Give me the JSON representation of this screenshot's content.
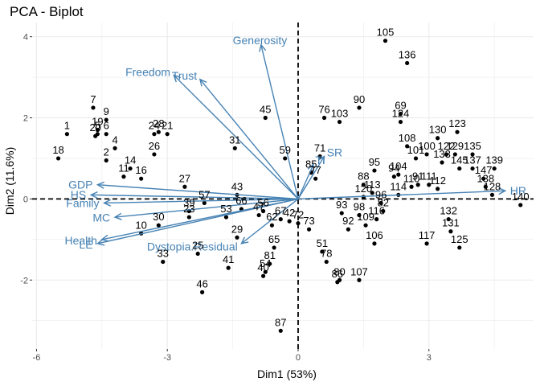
{
  "chart_data": {
    "type": "scatter",
    "title": "PCA - Biplot",
    "xlabel": "Dim1 (53%)",
    "ylabel": "Dim2 (11.6%)",
    "xlim": [
      -6.1,
      5.4
    ],
    "ylim": [
      -3.7,
      4.35
    ],
    "x_ticks": [
      -6,
      -3,
      0,
      3
    ],
    "y_ticks": [
      -2,
      0,
      2,
      4
    ],
    "x_ticklabels": [
      "-6",
      "-3",
      "0",
      "3"
    ],
    "y_ticklabels": [
      "-2",
      "0",
      "2",
      "4"
    ],
    "grid": true,
    "reference_lines": {
      "x": 0,
      "y": 0,
      "style": "dashed"
    },
    "colors": {
      "points": "#000000",
      "variables": "#4682b4",
      "grid": "#ebebeb"
    },
    "individuals": [
      {
        "label": "1",
        "x": -5.3,
        "y": 1.6
      },
      {
        "label": "2",
        "x": -4.4,
        "y": 0.95
      },
      {
        "label": "4",
        "x": -4.2,
        "y": 1.25
      },
      {
        "label": "5",
        "x": -4.6,
        "y": 1.6
      },
      {
        "label": "6",
        "x": -4.4,
        "y": 1.6
      },
      {
        "label": "7",
        "x": -4.7,
        "y": 2.25
      },
      {
        "label": "9",
        "x": -4.4,
        "y": 1.95
      },
      {
        "label": "10",
        "x": -3.6,
        "y": -0.85
      },
      {
        "label": "11",
        "x": -4.0,
        "y": 0.55
      },
      {
        "label": "14",
        "x": -3.85,
        "y": 0.75
      },
      {
        "label": "16",
        "x": -3.6,
        "y": 0.5
      },
      {
        "label": "18",
        "x": -5.5,
        "y": 1.0
      },
      {
        "label": "19",
        "x": -4.6,
        "y": 1.7
      },
      {
        "label": "20",
        "x": -4.65,
        "y": 1.55
      },
      {
        "label": "21",
        "x": -3.0,
        "y": 1.6
      },
      {
        "label": "23",
        "x": -2.5,
        "y": -0.45
      },
      {
        "label": "24",
        "x": -3.3,
        "y": 1.6
      },
      {
        "label": "25",
        "x": -2.3,
        "y": -1.35
      },
      {
        "label": "26",
        "x": -3.3,
        "y": 1.1
      },
      {
        "label": "27",
        "x": -2.6,
        "y": 0.3
      },
      {
        "label": "28",
        "x": -3.2,
        "y": 1.65
      },
      {
        "label": "29",
        "x": -1.4,
        "y": -0.95
      },
      {
        "label": "30",
        "x": -3.2,
        "y": -0.65
      },
      {
        "label": "31",
        "x": -1.45,
        "y": 1.25
      },
      {
        "label": "33",
        "x": -3.1,
        "y": -1.55
      },
      {
        "label": "39",
        "x": -2.5,
        "y": -0.3
      },
      {
        "label": "40",
        "x": -0.8,
        "y": -1.9
      },
      {
        "label": "41",
        "x": -1.6,
        "y": -1.7
      },
      {
        "label": "42",
        "x": -0.2,
        "y": -0.55
      },
      {
        "label": "43",
        "x": -1.4,
        "y": 0.1
      },
      {
        "label": "45",
        "x": -0.75,
        "y": 2.0
      },
      {
        "label": "46",
        "x": -2.2,
        "y": -2.3
      },
      {
        "label": "47",
        "x": -0.9,
        "y": -0.4
      },
      {
        "label": "51",
        "x": 0.55,
        "y": -1.3
      },
      {
        "label": "53",
        "x": -1.65,
        "y": -0.45
      },
      {
        "label": "54",
        "x": -0.75,
        "y": -1.8
      },
      {
        "label": "56",
        "x": -0.8,
        "y": -0.3
      },
      {
        "label": "57",
        "x": -2.15,
        "y": -0.1
      },
      {
        "label": "59",
        "x": -0.3,
        "y": 1.0
      },
      {
        "label": "62",
        "x": -0.6,
        "y": -0.65
      },
      {
        "label": "65",
        "x": -0.55,
        "y": -1.2
      },
      {
        "label": "66",
        "x": -1.3,
        "y": -0.25
      },
      {
        "label": "67",
        "x": -0.4,
        "y": -0.5
      },
      {
        "label": "69",
        "x": 2.35,
        "y": 2.1
      },
      {
        "label": "71",
        "x": 0.5,
        "y": 1.05
      },
      {
        "label": "72",
        "x": 0.0,
        "y": -0.6
      },
      {
        "label": "73",
        "x": 0.25,
        "y": -0.75
      },
      {
        "label": "76",
        "x": 0.6,
        "y": 2.0
      },
      {
        "label": "77",
        "x": 0.4,
        "y": 0.5
      },
      {
        "label": "78",
        "x": 0.65,
        "y": -1.55
      },
      {
        "label": "80",
        "x": 0.95,
        "y": -2.0
      },
      {
        "label": "81",
        "x": -0.65,
        "y": -1.6
      },
      {
        "label": "82",
        "x": 1.95,
        "y": -0.3
      },
      {
        "label": "85",
        "x": 0.3,
        "y": 0.65
      },
      {
        "label": "86",
        "x": 0.9,
        "y": -2.05
      },
      {
        "label": "87",
        "x": -0.4,
        "y": -3.25
      },
      {
        "label": "88",
        "x": 1.5,
        "y": 0.35
      },
      {
        "label": "90",
        "x": 1.4,
        "y": 2.25
      },
      {
        "label": "91",
        "x": 2.75,
        "y": 0.35
      },
      {
        "label": "92",
        "x": 1.15,
        "y": -0.75
      },
      {
        "label": "93",
        "x": 1.0,
        "y": -0.35
      },
      {
        "label": "94",
        "x": 2.2,
        "y": 0.55
      },
      {
        "label": "95",
        "x": 1.75,
        "y": 0.7
      },
      {
        "label": "96",
        "x": 1.9,
        "y": -0.1
      },
      {
        "label": "98",
        "x": 1.4,
        "y": -0.4
      },
      {
        "label": "100",
        "x": 2.95,
        "y": 1.1
      },
      {
        "label": "101",
        "x": 2.7,
        "y": 1.0
      },
      {
        "label": "103",
        "x": 0.95,
        "y": 1.9
      },
      {
        "label": "104",
        "x": 2.3,
        "y": 0.6
      },
      {
        "label": "105",
        "x": 2.0,
        "y": 3.9
      },
      {
        "label": "106",
        "x": 1.75,
        "y": -1.1
      },
      {
        "label": "107",
        "x": 1.4,
        "y": -2.0
      },
      {
        "label": "108",
        "x": 2.5,
        "y": 1.3
      },
      {
        "label": "109",
        "x": 1.55,
        "y": -0.65
      },
      {
        "label": "110",
        "x": 2.6,
        "y": 0.3
      },
      {
        "label": "111",
        "x": 3.0,
        "y": 0.35
      },
      {
        "label": "112",
        "x": 3.2,
        "y": 0.25
      },
      {
        "label": "113",
        "x": 1.7,
        "y": 0.15
      },
      {
        "label": "114",
        "x": 2.3,
        "y": 0.1
      },
      {
        "label": "116",
        "x": 1.8,
        "y": -0.5
      },
      {
        "label": "117",
        "x": 2.95,
        "y": -1.1
      },
      {
        "label": "120",
        "x": 1.5,
        "y": 0.05
      },
      {
        "label": "122",
        "x": 3.4,
        "y": 1.1
      },
      {
        "label": "123",
        "x": 3.65,
        "y": 1.65
      },
      {
        "label": "124",
        "x": 2.35,
        "y": 1.9
      },
      {
        "label": "125",
        "x": 3.7,
        "y": -1.2
      },
      {
        "label": "128",
        "x": 4.45,
        "y": 0.1
      },
      {
        "label": "129",
        "x": 3.6,
        "y": 1.1
      },
      {
        "label": "130",
        "x": 3.2,
        "y": 1.5
      },
      {
        "label": "131",
        "x": 3.5,
        "y": -0.8
      },
      {
        "label": "132",
        "x": 3.45,
        "y": -0.5
      },
      {
        "label": "133",
        "x": 3.3,
        "y": 0.9
      },
      {
        "label": "135",
        "x": 4.0,
        "y": 1.1
      },
      {
        "label": "136",
        "x": 2.5,
        "y": 3.35
      },
      {
        "label": "137",
        "x": 4.0,
        "y": 0.75
      },
      {
        "label": "138",
        "x": 4.3,
        "y": 0.3
      },
      {
        "label": "139",
        "x": 4.5,
        "y": 0.75
      },
      {
        "label": "140",
        "x": 5.1,
        "y": -0.15
      },
      {
        "label": "145",
        "x": 3.7,
        "y": 0.75
      },
      {
        "label": "147",
        "x": 4.25,
        "y": 0.5
      }
    ],
    "variables": [
      {
        "label": "Generosity",
        "x": -0.85,
        "y": 3.8
      },
      {
        "label": "Freedom",
        "x": -2.85,
        "y": 3.05
      },
      {
        "label": "Trust",
        "x": -2.25,
        "y": 2.95
      },
      {
        "label": "SR",
        "x": 0.6,
        "y": 1.05
      },
      {
        "label": "TI",
        "x": 0.35,
        "y": 0.85
      },
      {
        "label": "HR",
        "x": 4.75,
        "y": 0.2
      },
      {
        "label": "GDP",
        "x": -4.6,
        "y": 0.35
      },
      {
        "label": "HS",
        "x": -4.75,
        "y": 0.1
      },
      {
        "label": "Family",
        "x": -4.45,
        "y": -0.1
      },
      {
        "label": "MC",
        "x": -4.2,
        "y": -0.45
      },
      {
        "label": "Health",
        "x": -4.5,
        "y": -1.0
      },
      {
        "label": "LE",
        "x": -4.6,
        "y": -1.1
      },
      {
        "label": "Dystopia.Residual",
        "x": -1.3,
        "y": -1.1
      }
    ]
  }
}
